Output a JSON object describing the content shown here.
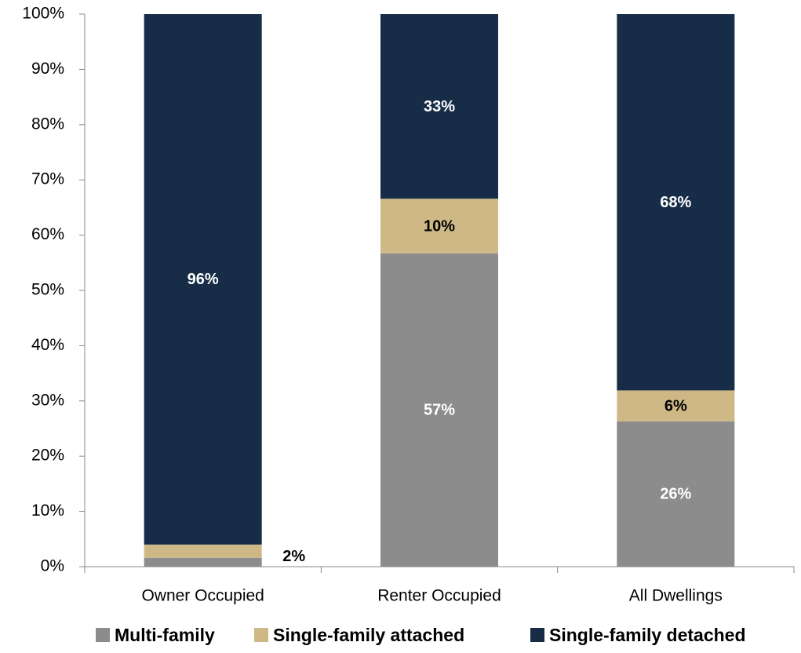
{
  "chart_data": {
    "type": "stacked_bar",
    "categories": [
      "Owner Occupied",
      "Renter Occupied",
      "All Dwellings"
    ],
    "series": [
      {
        "name": "Multi-family",
        "color": "#8c8c8c",
        "values": [
          1.6,
          56.7,
          26.3
        ],
        "value_labels": [
          null,
          "57%",
          "26%"
        ]
      },
      {
        "name": "Single-family attached",
        "color": "#cdb886",
        "values": [
          2.4,
          9.9,
          5.6
        ],
        "value_labels": [
          "2%",
          "10%",
          "6%"
        ]
      },
      {
        "name": "Single-family detached",
        "color": "#172d47",
        "values": [
          96,
          33.4,
          68.1
        ],
        "value_labels": [
          "96%",
          "33%",
          "68%"
        ]
      }
    ],
    "ylim": [
      0,
      100
    ],
    "yticks": [
      {
        "value": 0,
        "label": "0%"
      },
      {
        "value": 10,
        "label": "10%"
      },
      {
        "value": 20,
        "label": "20%"
      },
      {
        "value": 30,
        "label": "30%"
      },
      {
        "value": 40,
        "label": "40%"
      },
      {
        "value": 50,
        "label": "50%"
      },
      {
        "value": 60,
        "label": "60%"
      },
      {
        "value": 70,
        "label": "70%"
      },
      {
        "value": 80,
        "label": "80%"
      },
      {
        "value": 90,
        "label": "90%"
      },
      {
        "value": 100,
        "label": "100%"
      }
    ],
    "grid": false,
    "legend": "bottom"
  }
}
